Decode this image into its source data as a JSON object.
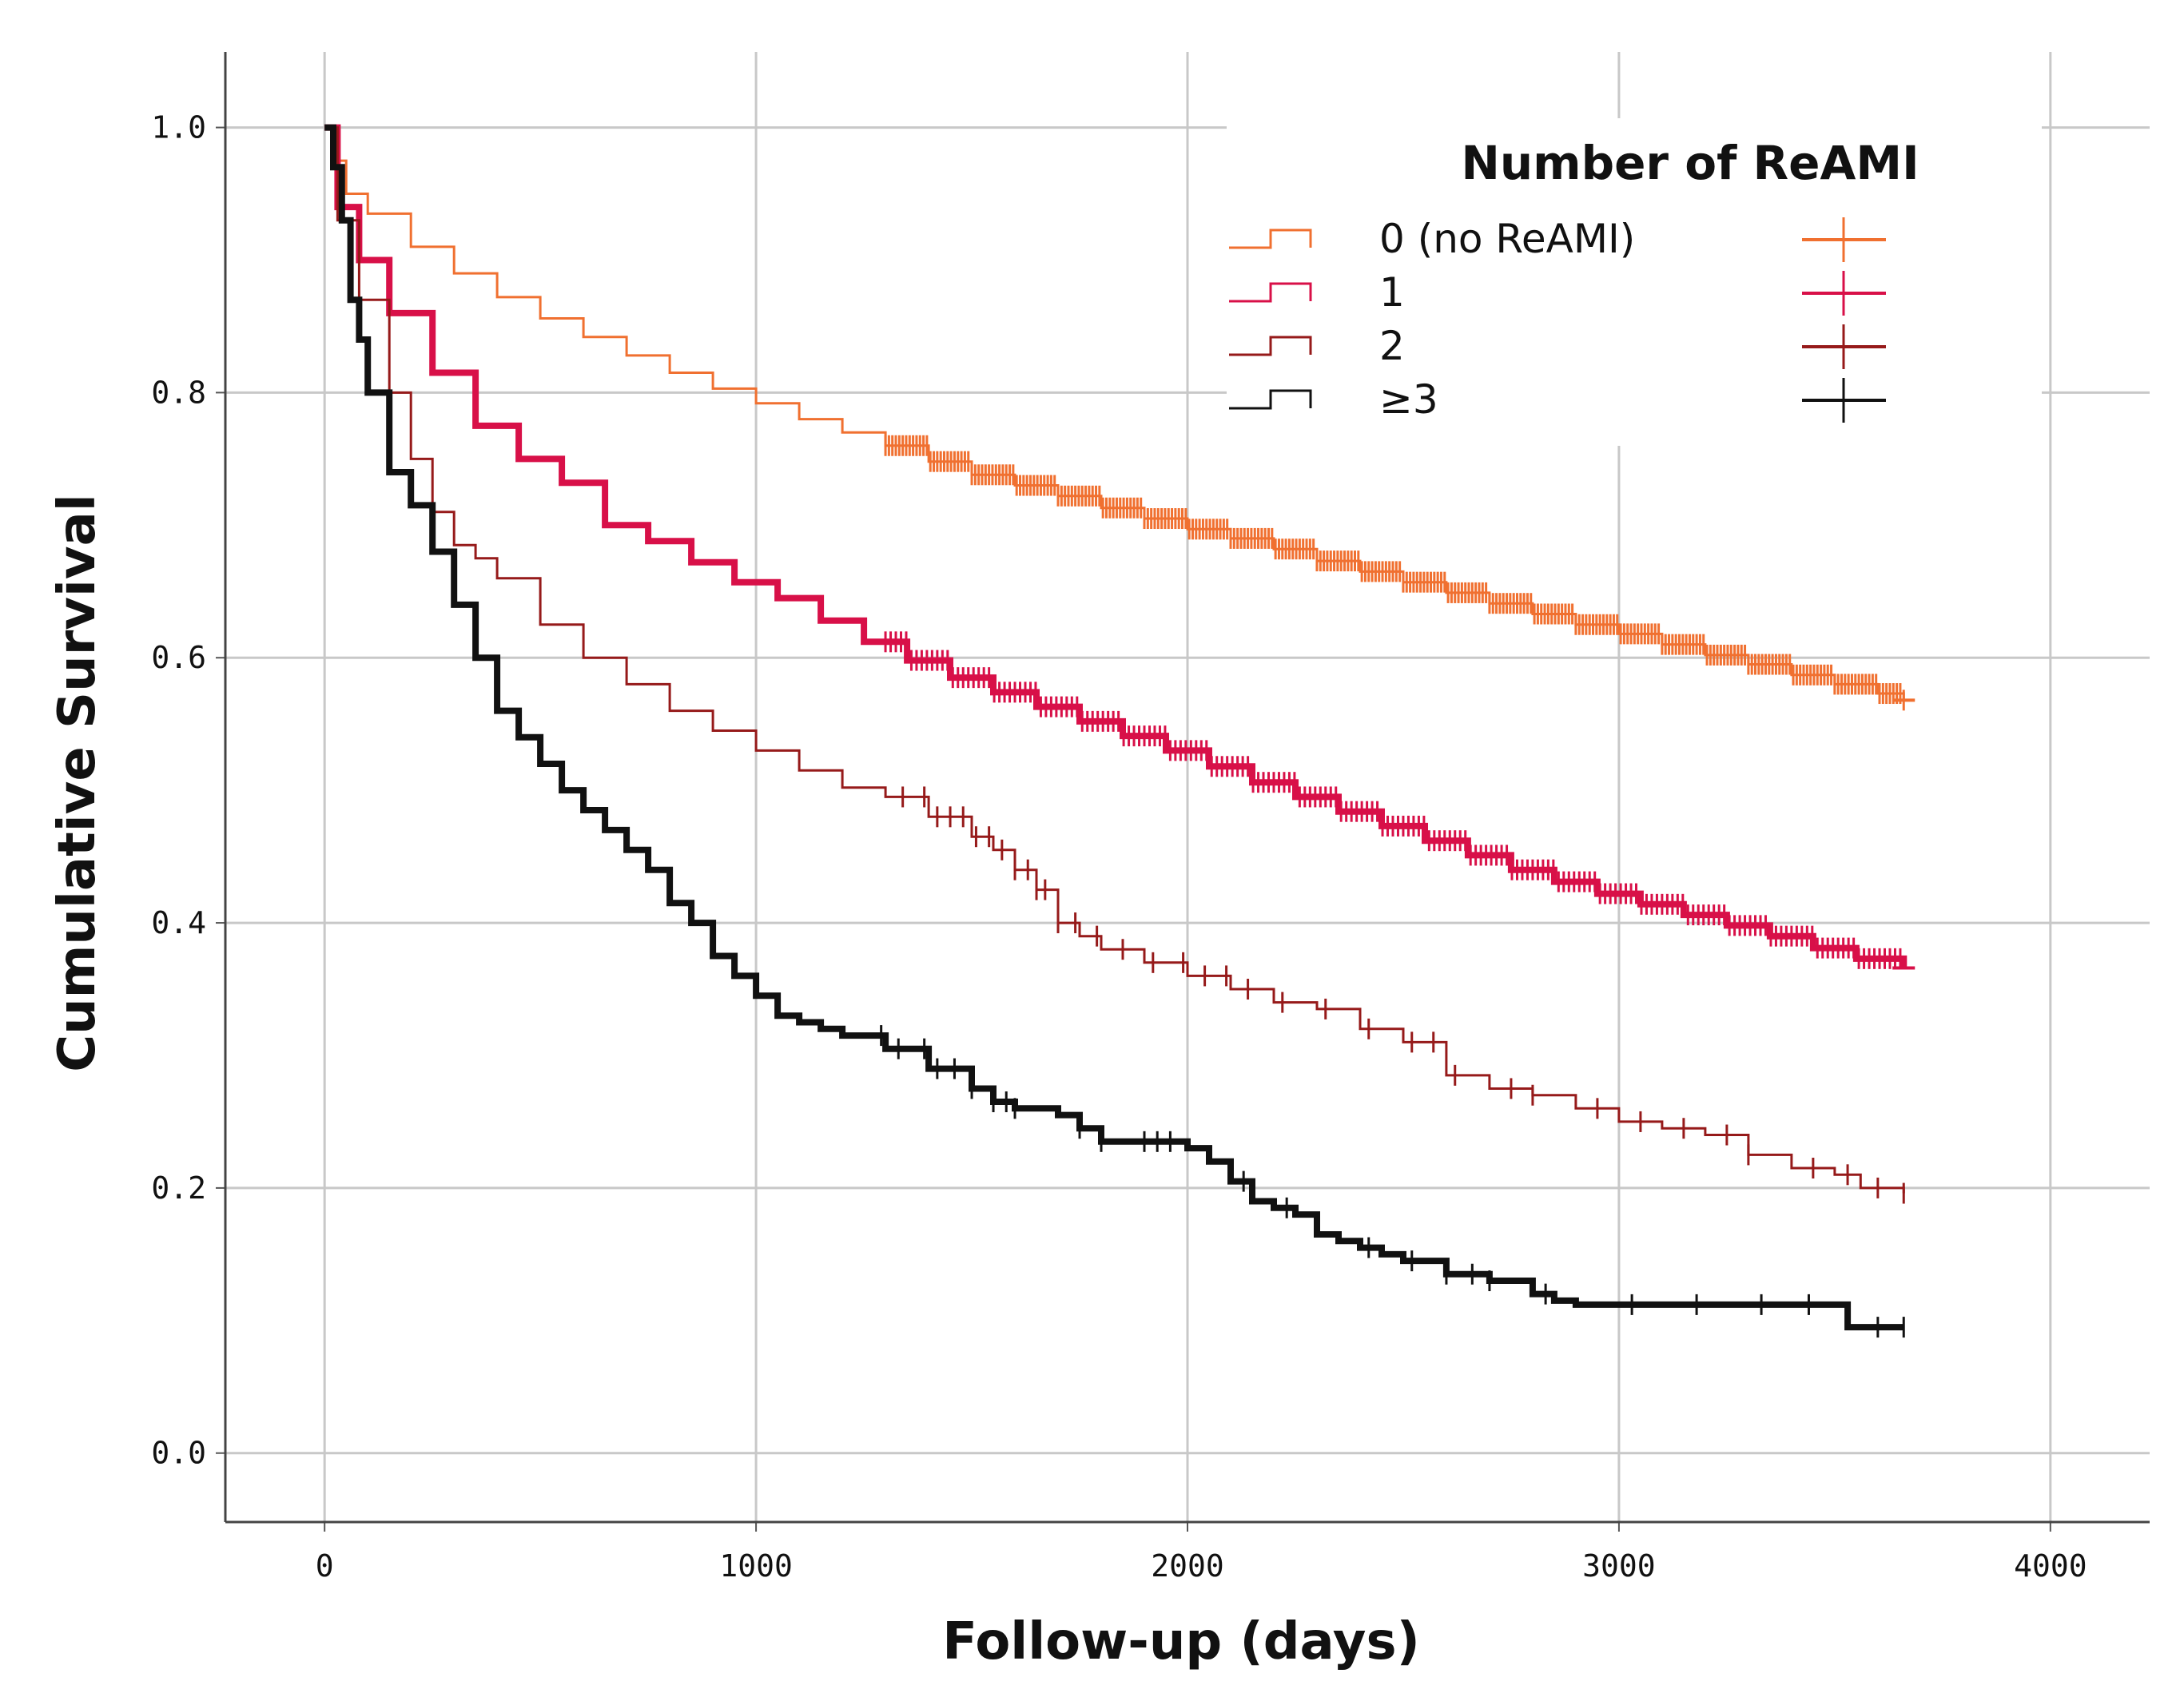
{
  "chart_data": {
    "type": "line",
    "subtype": "kaplan-meier",
    "title": "",
    "xlabel": "Follow-up (days)",
    "ylabel": "Cumulative Survival",
    "xlim": [
      -230,
      4230
    ],
    "ylim": [
      -0.052,
      1.057
    ],
    "xticks": [
      0,
      1000,
      2000,
      3000,
      4000
    ],
    "yticks": [
      0.0,
      0.2,
      0.4,
      0.6,
      0.8,
      1.0
    ],
    "xtick_labels": [
      "0",
      "1000",
      "2000",
      "3000",
      "4000"
    ],
    "ytick_labels": [
      "0.0",
      "0.2",
      "0.4",
      "0.6",
      "0.8",
      "1.0"
    ],
    "grid": true,
    "legend": {
      "title": "Number of ReAMI",
      "position": "top-right",
      "entries": [
        "0 (no ReAMI)",
        "1",
        "2",
        "≥3"
      ]
    },
    "series": [
      {
        "name": "0 (no ReAMI)",
        "color": "#f07030",
        "x": [
          0,
          20,
          50,
          100,
          200,
          300,
          400,
          500,
          600,
          700,
          800,
          900,
          1000,
          1100,
          1200,
          1300,
          1400,
          1500,
          1600,
          1700,
          1800,
          1900,
          2000,
          2100,
          2200,
          2300,
          2400,
          2500,
          2600,
          2700,
          2800,
          2900,
          3000,
          3100,
          3200,
          3300,
          3400,
          3500,
          3600,
          3660
        ],
        "y": [
          1.0,
          0.975,
          0.95,
          0.935,
          0.91,
          0.89,
          0.872,
          0.856,
          0.842,
          0.828,
          0.815,
          0.803,
          0.792,
          0.78,
          0.77,
          0.76,
          0.748,
          0.738,
          0.73,
          0.722,
          0.713,
          0.705,
          0.697,
          0.69,
          0.682,
          0.673,
          0.665,
          0.657,
          0.649,
          0.641,
          0.633,
          0.625,
          0.618,
          0.61,
          0.602,
          0.595,
          0.587,
          0.58,
          0.573,
          0.568
        ],
        "censor_range": [
          1300,
          3660
        ],
        "censor_end": 3660,
        "censor_step": 8,
        "line_width": 3
      },
      {
        "name": "1",
        "color": "#d81048",
        "x": [
          0,
          30,
          80,
          150,
          250,
          350,
          450,
          550,
          650,
          750,
          850,
          950,
          1050,
          1150,
          1250,
          1350,
          1450,
          1550,
          1650,
          1750,
          1850,
          1950,
          2050,
          2150,
          2250,
          2350,
          2450,
          2550,
          2650,
          2750,
          2850,
          2950,
          3050,
          3150,
          3250,
          3350,
          3450,
          3550,
          3660
        ],
        "y": [
          1.0,
          0.94,
          0.9,
          0.86,
          0.815,
          0.775,
          0.75,
          0.732,
          0.7,
          0.688,
          0.672,
          0.657,
          0.645,
          0.628,
          0.612,
          0.598,
          0.585,
          0.574,
          0.563,
          0.552,
          0.541,
          0.53,
          0.518,
          0.506,
          0.495,
          0.484,
          0.473,
          0.462,
          0.451,
          0.44,
          0.431,
          0.422,
          0.414,
          0.406,
          0.398,
          0.39,
          0.381,
          0.373,
          0.366
        ],
        "censor_range": [
          1300,
          3660
        ],
        "censor_end": 3660,
        "censor_step": 12,
        "line_width": 8
      },
      {
        "name": "2",
        "color": "#961a1a",
        "x": [
          0,
          30,
          80,
          150,
          200,
          250,
          300,
          350,
          400,
          500,
          600,
          700,
          800,
          900,
          1000,
          1100,
          1200,
          1300,
          1400,
          1500,
          1550,
          1600,
          1650,
          1700,
          1750,
          1800,
          1900,
          2000,
          2100,
          2200,
          2300,
          2400,
          2500,
          2600,
          2700,
          2800,
          2900,
          3000,
          3100,
          3200,
          3300,
          3400,
          3500,
          3560,
          3660
        ],
        "y": [
          1.0,
          0.93,
          0.87,
          0.8,
          0.75,
          0.71,
          0.685,
          0.675,
          0.66,
          0.625,
          0.6,
          0.58,
          0.56,
          0.545,
          0.53,
          0.515,
          0.502,
          0.495,
          0.48,
          0.465,
          0.455,
          0.44,
          0.425,
          0.4,
          0.39,
          0.38,
          0.37,
          0.36,
          0.35,
          0.34,
          0.335,
          0.32,
          0.31,
          0.285,
          0.275,
          0.27,
          0.26,
          0.25,
          0.245,
          0.24,
          0.225,
          0.215,
          0.21,
          0.2,
          0.196
        ],
        "censor_points": [
          1340,
          1390,
          1420,
          1450,
          1480,
          1510,
          1540,
          1570,
          1600,
          1630,
          1650,
          1670,
          1700,
          1740,
          1790,
          1850,
          1920,
          1990,
          2040,
          2090,
          2140,
          2220,
          2320,
          2420,
          2520,
          2570,
          2620,
          2750,
          2800,
          2950,
          3050,
          3150,
          3250,
          3300,
          3450,
          3530,
          3600,
          3660
        ],
        "line_width": 3
      },
      {
        "name": "≥3",
        "color": "#111111",
        "x": [
          0,
          20,
          40,
          60,
          80,
          100,
          150,
          200,
          250,
          300,
          350,
          400,
          450,
          500,
          550,
          600,
          650,
          700,
          750,
          800,
          850,
          900,
          950,
          1000,
          1050,
          1100,
          1150,
          1200,
          1300,
          1400,
          1500,
          1550,
          1600,
          1700,
          1750,
          1800,
          1900,
          2000,
          2050,
          2100,
          2150,
          2200,
          2250,
          2300,
          2350,
          2400,
          2450,
          2500,
          2600,
          2700,
          2800,
          2850,
          2900,
          3000,
          3100,
          3200,
          3400,
          3500,
          3530,
          3660
        ],
        "y": [
          1.0,
          0.97,
          0.93,
          0.87,
          0.84,
          0.8,
          0.74,
          0.715,
          0.68,
          0.64,
          0.6,
          0.56,
          0.54,
          0.52,
          0.5,
          0.485,
          0.47,
          0.455,
          0.44,
          0.415,
          0.4,
          0.375,
          0.36,
          0.345,
          0.33,
          0.325,
          0.32,
          0.315,
          0.305,
          0.29,
          0.275,
          0.265,
          0.26,
          0.255,
          0.245,
          0.235,
          0.235,
          0.23,
          0.22,
          0.205,
          0.19,
          0.185,
          0.18,
          0.165,
          0.16,
          0.155,
          0.15,
          0.145,
          0.135,
          0.13,
          0.12,
          0.115,
          0.112,
          0.112,
          0.112,
          0.112,
          0.112,
          0.112,
          0.095,
          0.095
        ],
        "censor_points": [
          1290,
          1330,
          1390,
          1420,
          1460,
          1500,
          1550,
          1580,
          1600,
          1750,
          1800,
          1900,
          1930,
          1960,
          2130,
          2230,
          2420,
          2520,
          2600,
          2660,
          2700,
          2830,
          3030,
          3180,
          3330,
          3440,
          3600,
          3660
        ],
        "line_width": 8
      }
    ]
  }
}
